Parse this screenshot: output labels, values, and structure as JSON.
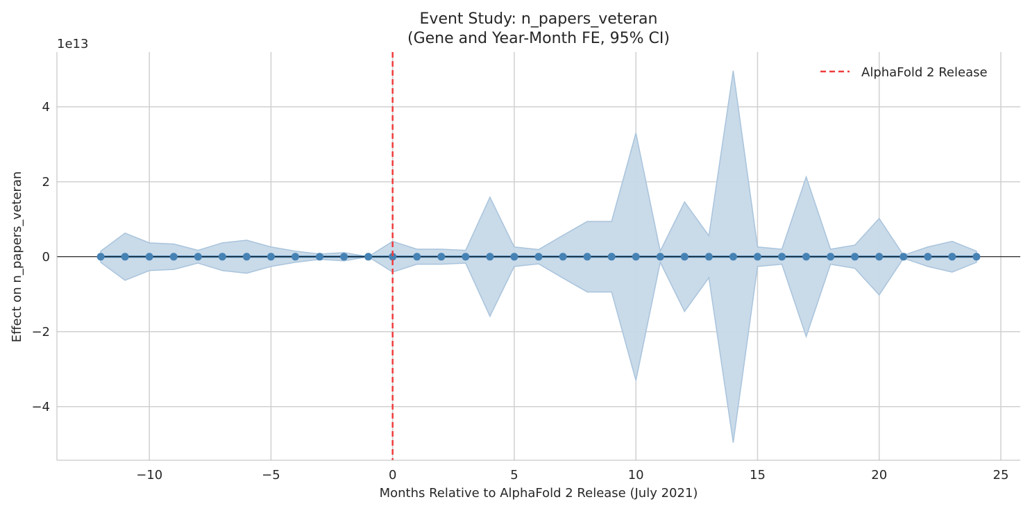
{
  "chart_data": {
    "type": "line",
    "title": "Event Study: n_papers_veteran",
    "subtitle": "(Gene and Year-Month FE, 95% CI)",
    "xlabel": "Months Relative to AlphaFold 2 Release (July 2021)",
    "ylabel": "Effect on n_papers_veteran",
    "y_scale_label": "1e13",
    "xlim": [
      -13.8,
      25.8
    ],
    "ylim": [
      -5.43,
      5.46
    ],
    "x_ticks": [
      -10,
      -5,
      0,
      5,
      10,
      15,
      20,
      25
    ],
    "x_tick_labels": [
      "−10",
      "−5",
      "0",
      "5",
      "10",
      "15",
      "20",
      "25"
    ],
    "y_ticks": [
      -4,
      -2,
      0,
      2,
      4
    ],
    "y_tick_labels": [
      "−4",
      "−2",
      "0",
      "2",
      "4"
    ],
    "grid": true,
    "legend": {
      "position": "top-right",
      "entries": [
        {
          "label": "AlphaFold 2 Release",
          "style": "dashed",
          "color": "#f03c3c"
        }
      ]
    },
    "reference_vline": {
      "x": 0,
      "label": "AlphaFold 2 Release"
    },
    "reference_hline": {
      "y": 0
    },
    "series": [
      {
        "x": [
          -12,
          -11,
          -10,
          -9,
          -8,
          -7,
          -6,
          -5,
          -4,
          -3,
          -2,
          -1,
          0,
          1,
          2,
          3,
          4,
          5,
          6,
          7,
          8,
          9,
          10,
          11,
          12,
          13,
          14,
          15,
          16,
          17,
          18,
          19,
          20,
          21,
          22,
          23,
          24
        ],
        "estimate": [
          0,
          0,
          0,
          0,
          0,
          0,
          0,
          0,
          0,
          0,
          0,
          0,
          0,
          0,
          0,
          0,
          0,
          0,
          0,
          0,
          0,
          0,
          0,
          0,
          0,
          0,
          0,
          0,
          0,
          0,
          0,
          0,
          0,
          0,
          0,
          0,
          0
        ],
        "ci_upper": [
          0.15,
          0.63,
          0.37,
          0.34,
          0.17,
          0.37,
          0.44,
          0.26,
          0.15,
          0.07,
          0.11,
          0,
          0.41,
          0.2,
          0.2,
          0.17,
          1.59,
          0.26,
          0.19,
          0.57,
          0.94,
          0.94,
          3.3,
          0.15,
          1.46,
          0.56,
          4.96,
          0.26,
          0.2,
          2.13,
          0.2,
          0.31,
          1.02,
          0.04,
          0.26,
          0.41,
          0.15
        ],
        "ci_lower": [
          -0.15,
          -0.63,
          -0.37,
          -0.34,
          -0.17,
          -0.37,
          -0.44,
          -0.26,
          -0.15,
          -0.07,
          -0.11,
          0,
          -0.41,
          -0.2,
          -0.2,
          -0.17,
          -1.59,
          -0.26,
          -0.19,
          -0.57,
          -0.94,
          -0.94,
          -3.3,
          -0.15,
          -1.46,
          -0.56,
          -4.96,
          -0.26,
          -0.2,
          -2.13,
          -0.2,
          -0.31,
          -1.02,
          -0.04,
          -0.26,
          -0.41,
          -0.15
        ]
      }
    ],
    "colors": {
      "line": "#4682b4",
      "band": "#c6d8e8",
      "vline": "#f03c3c"
    }
  }
}
